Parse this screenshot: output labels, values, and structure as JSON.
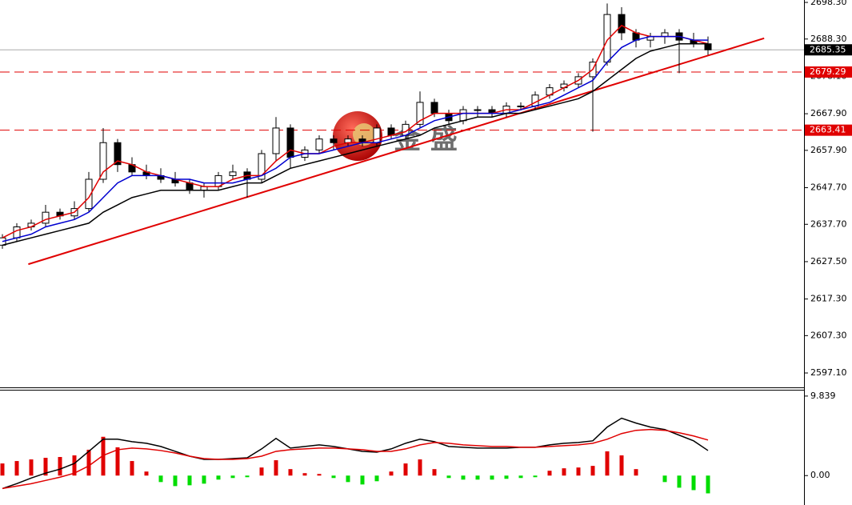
{
  "chart_data": [
    {
      "type": "candlestick",
      "watermark": "金 盛",
      "categories": [
        null,
        null,
        null,
        null,
        null,
        null,
        null,
        null,
        null,
        null,
        null,
        null,
        null,
        null,
        null,
        null,
        null,
        null,
        null,
        null,
        null,
        null,
        null,
        null,
        null,
        null,
        null,
        null,
        null,
        null,
        null,
        null,
        null,
        null,
        null,
        null,
        null,
        null,
        null,
        null,
        null,
        null,
        null,
        null,
        null,
        null,
        null,
        null,
        null,
        null
      ],
      "open": [
        2632,
        2634,
        2637,
        2638,
        2641,
        2640,
        2642,
        2650,
        2660,
        2654,
        2652,
        2651,
        2650,
        2649,
        2647,
        2648,
        2651,
        2652,
        2650,
        2657,
        2664,
        2656,
        2658,
        2661,
        2660,
        2661,
        2660,
        2664,
        2662,
        2665,
        2671,
        2668,
        2666,
        2669,
        2669,
        2668,
        2670,
        2670,
        2673,
        2675,
        2676,
        2678,
        2682,
        2695,
        2690,
        2688,
        2689,
        2690,
        2688,
        2687
      ],
      "high": [
        2635,
        2638,
        2639,
        2643,
        2642,
        2644,
        2652,
        2664,
        2661,
        2656,
        2654,
        2653,
        2652,
        2650,
        2649,
        2652,
        2654,
        2653,
        2658,
        2667,
        2665,
        2659,
        2662,
        2662,
        2662,
        2662,
        2665,
        2665,
        2666,
        2674,
        2672,
        2669,
        2670,
        2670,
        2670,
        2671,
        2671,
        2674,
        2676,
        2677,
        2679,
        2683,
        2698,
        2697,
        2691,
        2690,
        2691,
        2691,
        2690,
        2689
      ],
      "low": [
        2631,
        2633,
        2636,
        2637,
        2639,
        2639,
        2641,
        2649,
        2652,
        2651,
        2650,
        2649,
        2648,
        2646,
        2645,
        2647,
        2650,
        2645,
        2649,
        2655,
        2653,
        2655,
        2657,
        2658,
        2659,
        2659,
        2659,
        2661,
        2661,
        2664,
        2667,
        2665,
        2665,
        2667,
        2667,
        2667,
        2669,
        2669,
        2672,
        2674,
        2675,
        2663,
        2681,
        2688,
        2686,
        2686,
        2687,
        2679,
        2686,
        2684
      ],
      "close": [
        2634,
        2637,
        2638,
        2641,
        2640,
        2642,
        2650,
        2660,
        2654,
        2652,
        2651,
        2650,
        2649,
        2647,
        2648,
        2651,
        2652,
        2650,
        2657,
        2664,
        2656,
        2658,
        2661,
        2660,
        2661,
        2660,
        2664,
        2662,
        2665,
        2671,
        2668,
        2666,
        2669,
        2669,
        2668,
        2670,
        2670,
        2673,
        2675,
        2676,
        2678,
        2682,
        2695,
        2690,
        2688,
        2689,
        2690,
        2688,
        2687,
        2685.35
      ],
      "series": [
        {
          "color": "#e00000",
          "values": [
            2634,
            2636,
            2637,
            2639,
            2640,
            2641,
            2645,
            2652,
            2655,
            2654,
            2652,
            2651,
            2650,
            2649,
            2648,
            2648,
            2650,
            2651,
            2651,
            2655,
            2658,
            2657,
            2657,
            2659,
            2660,
            2660,
            2661,
            2662,
            2663,
            2666,
            2668,
            2668,
            2668,
            2668,
            2668,
            2669,
            2669,
            2671,
            2673,
            2675,
            2677,
            2680,
            2688,
            2692,
            2690,
            2689,
            2689,
            2689,
            2688,
            2687
          ]
        },
        {
          "color": "#0000d0",
          "values": [
            2633,
            2634,
            2635,
            2637,
            2638,
            2639,
            2641,
            2645,
            2649,
            2651,
            2651,
            2651,
            2650,
            2650,
            2649,
            2649,
            2649,
            2650,
            2651,
            2653,
            2656,
            2657,
            2657,
            2658,
            2659,
            2660,
            2660,
            2661,
            2662,
            2664,
            2666,
            2667,
            2668,
            2668,
            2668,
            2668,
            2669,
            2670,
            2671,
            2673,
            2675,
            2677,
            2682,
            2686,
            2688,
            2689,
            2689,
            2689,
            2688,
            2688
          ]
        },
        {
          "color": "#000000",
          "values": [
            2632,
            2633,
            2634,
            2635,
            2636,
            2637,
            2638,
            2641,
            2643,
            2645,
            2646,
            2647,
            2647,
            2647,
            2647,
            2647,
            2648,
            2649,
            2649,
            2651,
            2653,
            2654,
            2655,
            2656,
            2657,
            2658,
            2659,
            2660,
            2661,
            2662,
            2664,
            2665,
            2666,
            2667,
            2667,
            2668,
            2668,
            2669,
            2670,
            2671,
            2672,
            2674,
            2677,
            2680,
            2683,
            2685,
            2686,
            2687,
            2687,
            2687
          ]
        }
      ],
      "trend_line": {
        "color": "#e00000",
        "x": [
          1.8,
          52.9
        ],
        "values": [
          2626.8,
          2688.5
        ]
      },
      "current_price": 2685.35,
      "levels": [
        2679.29,
        2663.41
      ],
      "level_color": "#e00000",
      "ylim": [
        2593.17,
        2698.96
      ],
      "yticks": [
        {
          "value": 2698.3,
          "label": "2698.30"
        },
        {
          "value": 2688.3,
          "label": "2688.30"
        },
        {
          "value": 2678.1,
          "label": "2678.10"
        },
        {
          "value": 2667.9,
          "label": "2667.90"
        },
        {
          "value": 2657.9,
          "label": "2657.90"
        },
        {
          "value": 2647.7,
          "label": "2647.70"
        },
        {
          "value": 2637.7,
          "label": "2637.70"
        },
        {
          "value": 2627.5,
          "label": "2627.50"
        },
        {
          "value": 2617.3,
          "label": "2617.30"
        },
        {
          "value": 2607.3,
          "label": "2607.30"
        },
        {
          "value": 2597.1,
          "label": "2597.10"
        }
      ]
    },
    {
      "type": "macd",
      "pos_color": "#e00000",
      "neg_color": "#00dd00",
      "values": [
        1.5,
        1.8,
        2,
        2.2,
        2.3,
        2.5,
        3.2,
        4.8,
        3.5,
        1.8,
        0.5,
        -0.8,
        -1.3,
        -1.2,
        -1.0,
        -0.5,
        -0.3,
        -0.2,
        1.0,
        1.9,
        0.8,
        0.3,
        0.2,
        -0.3,
        -0.8,
        -1.1,
        -0.7,
        0.5,
        1.5,
        2.0,
        0.8,
        -0.3,
        -0.5,
        -0.5,
        -0.5,
        -0.4,
        -0.3,
        -0.2,
        0.6,
        0.9,
        1.0,
        1.2,
        3.0,
        2.5,
        0.8,
        0,
        -0.8,
        -1.5,
        -1.8,
        -2.2
      ],
      "series": [
        {
          "color": "#000000",
          "values": [
            -1.6,
            -1.0,
            -0.3,
            0.3,
            0.8,
            1.5,
            3,
            4.5,
            4.5,
            4.2,
            4,
            3.6,
            3,
            2.4,
            2,
            2,
            2.1,
            2.2,
            3.3,
            4.6,
            3.4,
            3.6,
            3.8,
            3.6,
            3.3,
            3.0,
            2.9,
            3.3,
            4,
            4.5,
            4.2,
            3.6,
            3.5,
            3.4,
            3.4,
            3.4,
            3.5,
            3.5,
            3.8,
            4.0,
            4.1,
            4.3,
            6,
            7.1,
            6.5,
            6.0,
            5.7,
            5,
            4.3,
            3.1
          ]
        },
        {
          "color": "#e00000",
          "values": [
            -1.6,
            -1.3,
            -1.0,
            -0.6,
            -0.2,
            0.3,
            1.2,
            2.5,
            3.2,
            3.4,
            3.3,
            3.1,
            2.8,
            2.4,
            2.1,
            2.0,
            2.0,
            2.1,
            2.4,
            3.0,
            3.2,
            3.3,
            3.4,
            3.4,
            3.3,
            3.2,
            3.0,
            3.0,
            3.3,
            3.8,
            4.1,
            4.0,
            3.8,
            3.7,
            3.6,
            3.6,
            3.5,
            3.5,
            3.6,
            3.7,
            3.8,
            4.0,
            4.5,
            5.2,
            5.6,
            5.7,
            5.6,
            5.3,
            4.9,
            4.4
          ]
        }
      ],
      "ylim": [
        -3.64,
        10.62
      ],
      "yticks": [
        9.839,
        {
          "value": 0,
          "label": "0.00"
        }
      ]
    }
  ]
}
